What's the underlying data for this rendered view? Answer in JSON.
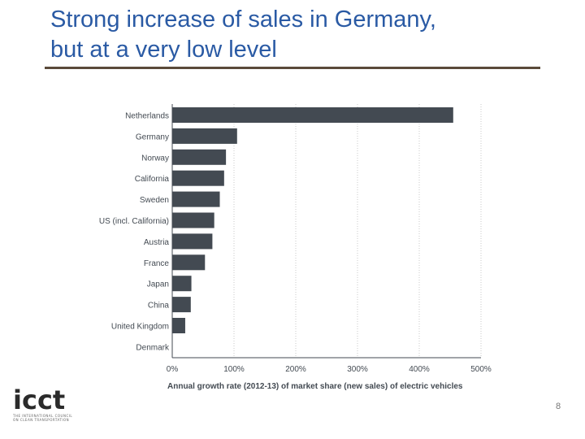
{
  "slide": {
    "title_line1": "Strong increase of sales in Germany,",
    "title_line2": "but at a very low level",
    "page_number": "8"
  },
  "logo": {
    "word": "icct",
    "tagline_line1": "THE INTERNATIONAL COUNCIL",
    "tagline_line2": "ON CLEAN TRANSPORTATION"
  },
  "colors": {
    "title": "#2a5aa4",
    "bar": "#434a52",
    "grid": "#c8c8c8",
    "axis": "#434a52",
    "text": "#434a52"
  },
  "chart_data": {
    "type": "bar",
    "orientation": "horizontal",
    "categories": [
      "Netherlands",
      "Germany",
      "Norway",
      "California",
      "Sweden",
      "US (incl. California)",
      "Austria",
      "France",
      "Japan",
      "China",
      "United Kingdom",
      "Denmark"
    ],
    "values": [
      455,
      105,
      87,
      84,
      77,
      68,
      65,
      53,
      31,
      30,
      21,
      0
    ],
    "xlim": [
      0,
      500
    ],
    "xticks": [
      0,
      100,
      200,
      300,
      400,
      500
    ],
    "xtick_labels": [
      "0%",
      "100%",
      "200%",
      "300%",
      "400%",
      "500%"
    ],
    "xlabel": "Annual growth rate (2012-13) of market share (new sales) of electric vehicles",
    "ylabel": "",
    "grid": "vertical dotted"
  }
}
